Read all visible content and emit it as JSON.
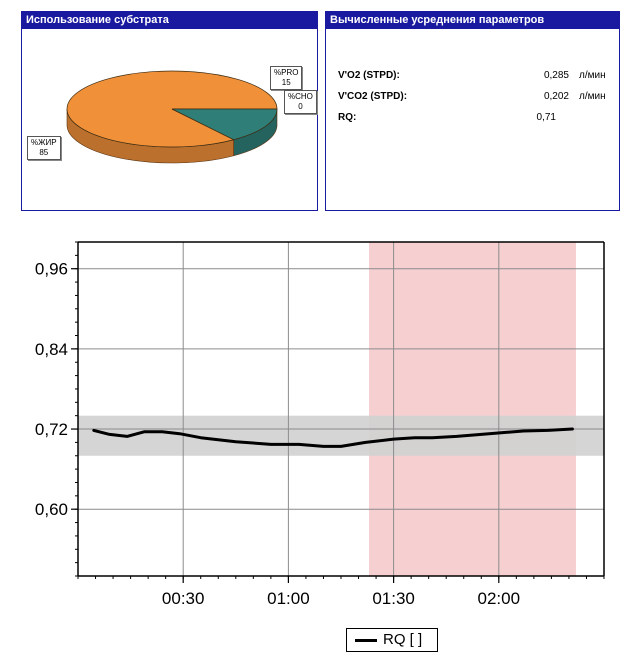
{
  "substrate_panel": {
    "title": "Использование субстрата",
    "slices": [
      {
        "label": "%ЖИР",
        "value": 85,
        "color": "#f0913a"
      },
      {
        "label": "%PRO",
        "value": 15,
        "color": "#2f7f78"
      },
      {
        "label": "%CHO",
        "value": 0,
        "color": "#7f7f7f"
      }
    ]
  },
  "params_panel": {
    "title": "Вычисленные усреднения параметров",
    "rows": [
      {
        "name": "V'O2 (STPD):",
        "value": "0,285",
        "unit": "л/мин"
      },
      {
        "name": "V'CO2 (STPD):",
        "value": "0,202",
        "unit": "л/мин"
      },
      {
        "name": "RQ:",
        "value": "0,71",
        "unit": ""
      }
    ]
  },
  "chart_data": {
    "type": "line",
    "series": [
      {
        "name": "RQ [ ]",
        "x_minutes": [
          4.5,
          9,
          14,
          19,
          24,
          29,
          35,
          45,
          55,
          63,
          70,
          75,
          82,
          90,
          96,
          101,
          108,
          115,
          122,
          127,
          134,
          141
        ],
        "values": [
          0.718,
          0.712,
          0.709,
          0.716,
          0.716,
          0.713,
          0.707,
          0.701,
          0.697,
          0.697,
          0.694,
          0.694,
          0.7,
          0.705,
          0.707,
          0.707,
          0.709,
          0.712,
          0.715,
          0.717,
          0.718,
          0.72
        ],
        "color": "#000000"
      }
    ],
    "x_ticks": [
      {
        "value": 30,
        "label": "00:30"
      },
      {
        "value": 60,
        "label": "01:00"
      },
      {
        "value": 90,
        "label": "01:30"
      },
      {
        "value": 120,
        "label": "02:00"
      }
    ],
    "y_ticks": [
      {
        "value": 0.96,
        "label": "0,96"
      },
      {
        "value": 0.84,
        "label": "0,84"
      },
      {
        "value": 0.72,
        "label": "0,72"
      },
      {
        "value": 0.6,
        "label": "0,60"
      }
    ],
    "xlim": [
      0,
      150
    ],
    "ylim": [
      0.5,
      1.0
    ],
    "reference_band": {
      "y_min": 0.68,
      "y_max": 0.74,
      "color": "#d0d0d0"
    },
    "highlight_region": {
      "x_min": 83,
      "x_max": 142,
      "color": "#f6cfd1"
    },
    "legend_position": "bottom-center",
    "grid": true
  }
}
